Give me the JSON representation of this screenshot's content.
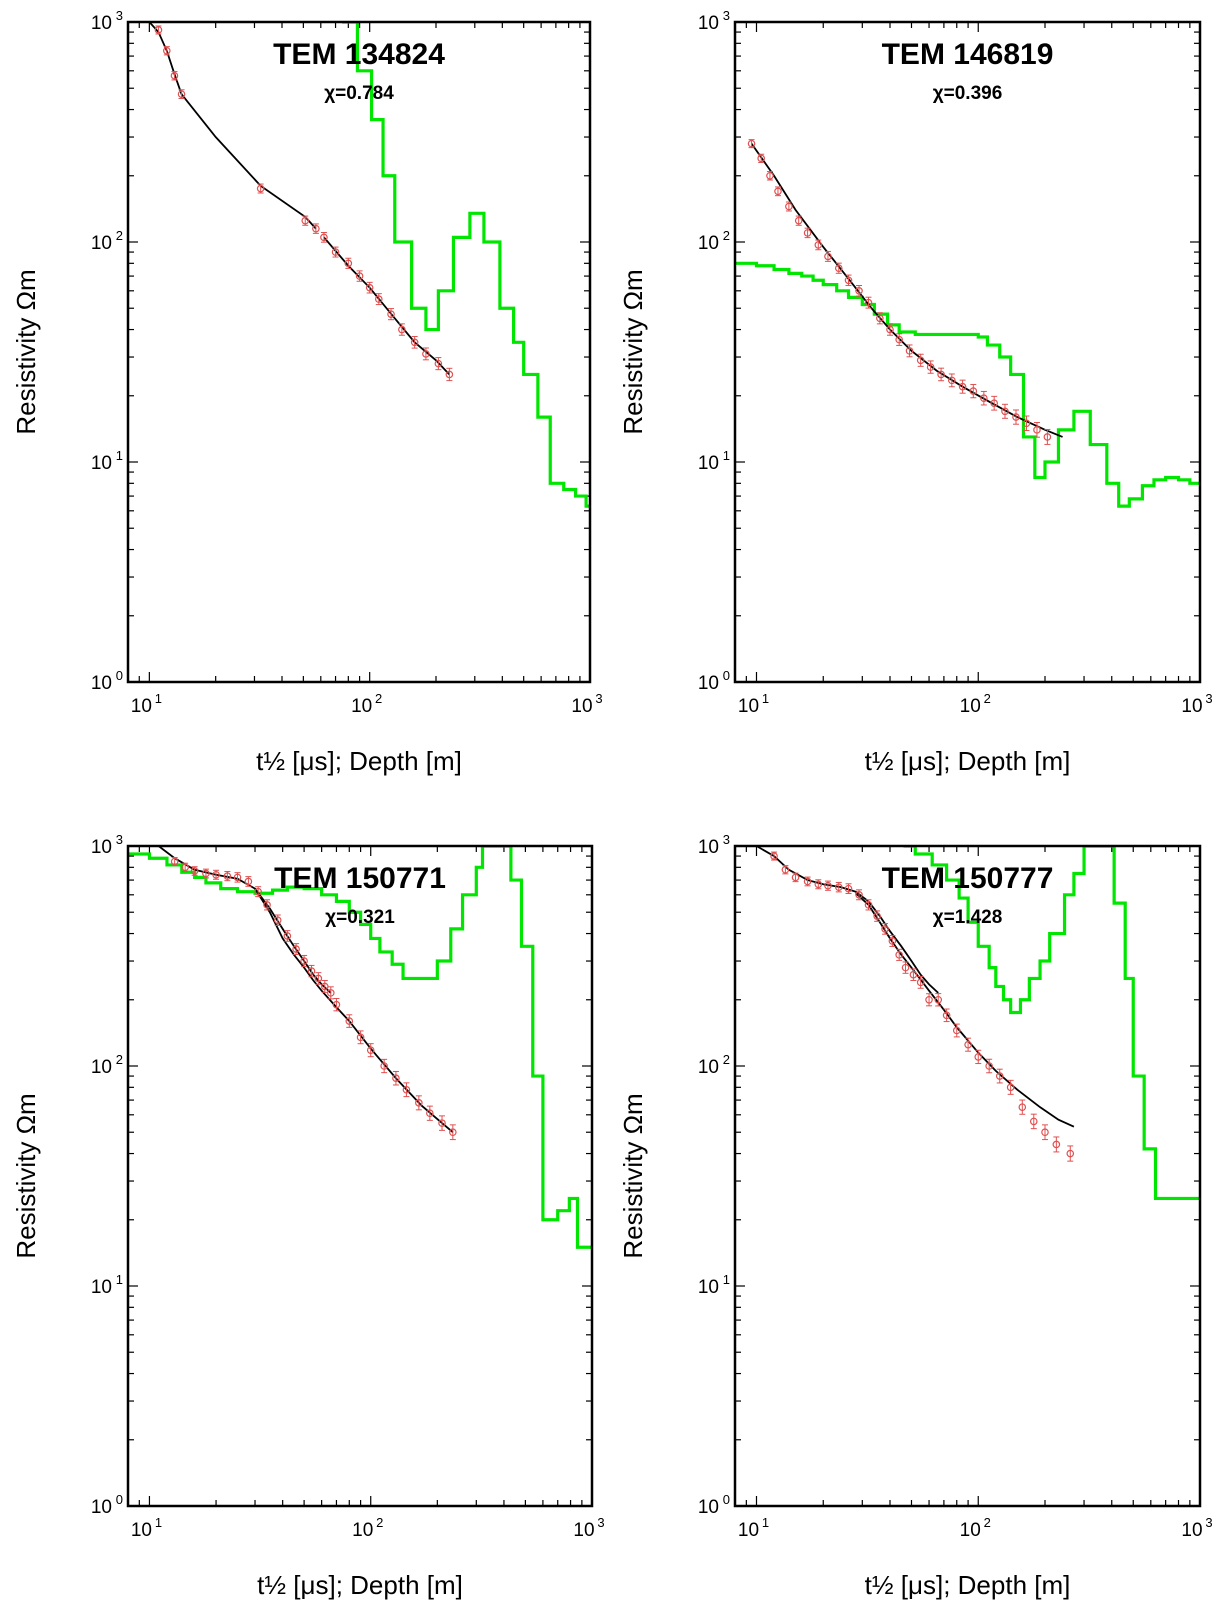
{
  "chart_data": [
    {
      "type": "line",
      "title": "TEM 134824",
      "chi_label": "χ=0.784",
      "xlabel": "t½ [μs]; Depth [m]",
      "ylabel": "Resistivity Ωm",
      "x_scale": "log",
      "y_scale": "log",
      "xlim": [
        8,
        1000
      ],
      "ylim": [
        1,
        1000
      ],
      "x_ticks": [
        "10^1",
        "10^2",
        "10^3"
      ],
      "y_ticks": [
        "10^0",
        "10^1",
        "10^2",
        "10^3"
      ],
      "model": {
        "color": "#00e600",
        "steps": [
          [
            75,
            1000
          ],
          [
            88,
            600
          ],
          [
            102,
            360
          ],
          [
            115,
            200
          ],
          [
            130,
            100
          ],
          [
            155,
            50
          ],
          [
            180,
            40
          ],
          [
            205,
            60
          ],
          [
            240,
            105
          ],
          [
            285,
            135
          ],
          [
            330,
            100
          ],
          [
            390,
            50
          ],
          [
            450,
            35
          ],
          [
            500,
            25
          ],
          [
            580,
            16
          ],
          [
            660,
            8
          ],
          [
            760,
            7.5
          ],
          [
            860,
            7
          ],
          [
            960,
            6.3
          ],
          [
            1000,
            6.3
          ]
        ]
      },
      "observed": {
        "color": "#e05050",
        "x": [
          11,
          12,
          13,
          14,
          32,
          51,
          57,
          62,
          70,
          80,
          90,
          100,
          110,
          125,
          140,
          160,
          180,
          205,
          230
        ],
        "y": [
          920,
          740,
          570,
          470,
          175,
          125,
          115,
          105,
          90,
          80,
          70,
          62,
          55,
          47,
          40,
          35,
          31,
          28,
          25
        ]
      },
      "fits": [
        {
          "x": [
            10,
            11,
            12,
            13,
            14,
            20,
            32,
            51,
            57
          ],
          "y": [
            1000,
            900,
            740,
            580,
            470,
            300,
            180,
            130,
            115
          ]
        },
        {
          "x": [
            62,
            80,
            100,
            130,
            160,
            200,
            230
          ],
          "y": [
            105,
            78,
            62,
            45,
            35,
            29,
            25
          ]
        }
      ]
    },
    {
      "type": "line",
      "title": "TEM 146819",
      "chi_label": "χ=0.396",
      "xlabel": "t½ [μs]; Depth [m]",
      "ylabel": "Resistivity Ωm",
      "x_scale": "log",
      "y_scale": "log",
      "xlim": [
        8,
        1000
      ],
      "ylim": [
        1,
        1000
      ],
      "x_ticks": [
        "10^1",
        "10^2",
        "10^3"
      ],
      "y_ticks": [
        "10^0",
        "10^1",
        "10^2",
        "10^3"
      ],
      "model": {
        "color": "#00e600",
        "steps": [
          [
            8,
            80
          ],
          [
            10,
            78
          ],
          [
            12,
            75
          ],
          [
            14,
            72
          ],
          [
            16,
            70
          ],
          [
            18,
            67
          ],
          [
            20,
            64
          ],
          [
            23,
            60
          ],
          [
            26,
            56
          ],
          [
            30,
            52
          ],
          [
            34,
            47
          ],
          [
            39,
            42
          ],
          [
            44,
            39
          ],
          [
            52,
            38
          ],
          [
            75,
            38
          ],
          [
            100,
            37
          ],
          [
            110,
            34
          ],
          [
            125,
            30
          ],
          [
            140,
            25
          ],
          [
            160,
            13
          ],
          [
            180,
            8.5
          ],
          [
            200,
            10
          ],
          [
            230,
            14
          ],
          [
            270,
            17
          ],
          [
            320,
            12
          ],
          [
            380,
            8
          ],
          [
            430,
            6.3
          ],
          [
            480,
            6.8
          ],
          [
            550,
            7.8
          ],
          [
            620,
            8.3
          ],
          [
            700,
            8.5
          ],
          [
            800,
            8.3
          ],
          [
            900,
            8
          ],
          [
            1000,
            8
          ]
        ]
      },
      "observed": {
        "color": "#e05050",
        "x": [
          9.5,
          10.5,
          11.5,
          12.5,
          14,
          15.5,
          17,
          19,
          21,
          23.5,
          26,
          29,
          32,
          36,
          40,
          44,
          49,
          55,
          61,
          68,
          76,
          85,
          95,
          106,
          118,
          132,
          148,
          165,
          184,
          205
        ],
        "y": [
          280,
          240,
          200,
          170,
          145,
          125,
          110,
          97,
          86,
          76,
          67,
          60,
          53,
          45,
          40,
          36,
          32,
          29,
          27,
          25,
          23.5,
          22,
          21,
          19.5,
          18.5,
          17,
          16,
          15,
          14,
          13
        ]
      },
      "fits": [
        {
          "x": [
            9.5,
            12,
            15,
            20,
            26,
            33,
            40,
            50,
            65,
            85,
            110,
            150,
            200,
            240
          ],
          "y": [
            280,
            200,
            140,
            95,
            68,
            50,
            40,
            32,
            26,
            22,
            19,
            16,
            14,
            13
          ]
        }
      ]
    },
    {
      "type": "line",
      "title": "TEM 150771",
      "chi_label": "χ=0.321",
      "xlabel": "t½ [μs]; Depth [m]",
      "ylabel": "Resistivity Ωm",
      "x_scale": "log",
      "y_scale": "log",
      "xlim": [
        8,
        1000
      ],
      "ylim": [
        1,
        1000
      ],
      "x_ticks": [
        "10^1",
        "10^2",
        "10^3"
      ],
      "y_ticks": [
        "10^0",
        "10^1",
        "10^2",
        "10^3"
      ],
      "model": {
        "color": "#00e600",
        "steps": [
          [
            8,
            920
          ],
          [
            10,
            880
          ],
          [
            12,
            820
          ],
          [
            14,
            760
          ],
          [
            16,
            720
          ],
          [
            18,
            680
          ],
          [
            21,
            640
          ],
          [
            25,
            620
          ],
          [
            30,
            610
          ],
          [
            36,
            630
          ],
          [
            42,
            650
          ],
          [
            50,
            640
          ],
          [
            60,
            600
          ],
          [
            70,
            560
          ],
          [
            80,
            500
          ],
          [
            90,
            440
          ],
          [
            100,
            380
          ],
          [
            110,
            330
          ],
          [
            125,
            290
          ],
          [
            140,
            250
          ],
          [
            180,
            250
          ],
          [
            200,
            300
          ],
          [
            230,
            420
          ],
          [
            260,
            600
          ],
          [
            300,
            800
          ],
          [
            320,
            1000
          ],
          [
            400,
            1000
          ],
          [
            430,
            700
          ],
          [
            480,
            350
          ],
          [
            540,
            90
          ],
          [
            600,
            20
          ],
          [
            700,
            22
          ],
          [
            790,
            25
          ],
          [
            860,
            15
          ],
          [
            1000,
            15
          ]
        ]
      },
      "observed": {
        "color": "#e05050",
        "x": [
          13,
          14.5,
          16,
          18,
          20,
          22.5,
          25,
          28,
          31,
          34,
          38,
          42,
          46,
          50,
          54,
          58,
          62,
          66,
          70,
          80,
          90,
          100,
          115,
          130,
          145,
          165,
          185,
          210,
          235
        ],
        "y": [
          850,
          800,
          770,
          750,
          740,
          730,
          720,
          690,
          620,
          540,
          460,
          390,
          340,
          300,
          270,
          250,
          230,
          215,
          190,
          160,
          135,
          118,
          100,
          88,
          78,
          68,
          61,
          55,
          50
        ]
      },
      "fits": [
        {
          "x": [
            11,
            13,
            16,
            20,
            25,
            30,
            35,
            40,
            45,
            50,
            55,
            60,
            66
          ],
          "y": [
            1000,
            880,
            780,
            740,
            710,
            640,
            520,
            420,
            350,
            300,
            260,
            235,
            215
          ]
        },
        {
          "x": [
            30,
            35,
            40,
            45,
            50,
            55,
            60,
            70,
            80,
            100,
            130,
            170,
            210,
            235
          ],
          "y": [
            640,
            500,
            380,
            320,
            280,
            245,
            220,
            185,
            160,
            120,
            88,
            66,
            55,
            50
          ]
        }
      ]
    },
    {
      "type": "line",
      "title": "TEM 150777",
      "chi_label": "χ=1.428",
      "xlabel": "t½ [μs]; Depth [m]",
      "ylabel": "Resistivity Ωm",
      "x_scale": "log",
      "y_scale": "log",
      "xlim": [
        8,
        1000
      ],
      "ylim": [
        1,
        1000
      ],
      "x_ticks": [
        "10^1",
        "10^2",
        "10^3"
      ],
      "y_ticks": [
        "10^0",
        "10^1",
        "10^2",
        "10^3"
      ],
      "model": {
        "color": "#00e600",
        "steps": [
          [
            46,
            1000
          ],
          [
            52,
            920
          ],
          [
            62,
            820
          ],
          [
            72,
            700
          ],
          [
            82,
            580
          ],
          [
            90,
            450
          ],
          [
            100,
            350
          ],
          [
            112,
            280
          ],
          [
            120,
            230
          ],
          [
            130,
            200
          ],
          [
            140,
            175
          ],
          [
            155,
            200
          ],
          [
            170,
            250
          ],
          [
            190,
            300
          ],
          [
            210,
            400
          ],
          [
            245,
            600
          ],
          [
            270,
            750
          ],
          [
            300,
            1000
          ],
          [
            360,
            1000
          ],
          [
            410,
            550
          ],
          [
            460,
            250
          ],
          [
            500,
            90
          ],
          [
            560,
            42
          ],
          [
            630,
            25
          ],
          [
            1000,
            25
          ]
        ]
      },
      "observed": {
        "color": "#e05050",
        "x": [
          12,
          13.5,
          15,
          17,
          19,
          21,
          23.5,
          26,
          29,
          32,
          35,
          38,
          41,
          44,
          47,
          51,
          55,
          60,
          66,
          72,
          80,
          90,
          100,
          112,
          125,
          140,
          158,
          178,
          200,
          225,
          260
        ],
        "y": [
          900,
          780,
          720,
          690,
          670,
          660,
          650,
          640,
          600,
          540,
          480,
          420,
          370,
          320,
          280,
          260,
          240,
          200,
          200,
          170,
          145,
          125,
          110,
          100,
          90,
          80,
          65,
          56,
          50,
          44,
          40
        ]
      },
      "fits": [
        {
          "x": [
            10,
            12,
            14,
            17,
            20,
            24,
            28,
            32,
            36,
            40,
            45,
            50,
            55,
            60,
            66
          ],
          "y": [
            1000,
            900,
            780,
            700,
            670,
            650,
            620,
            560,
            480,
            410,
            350,
            300,
            260,
            235,
            215
          ]
        },
        {
          "x": [
            28,
            32,
            36,
            40,
            45,
            50,
            60,
            70,
            80,
            100,
            120,
            150,
            190,
            230,
            270
          ],
          "y": [
            610,
            540,
            450,
            380,
            320,
            280,
            220,
            180,
            150,
            115,
            95,
            78,
            65,
            57,
            53
          ]
        }
      ]
    }
  ]
}
